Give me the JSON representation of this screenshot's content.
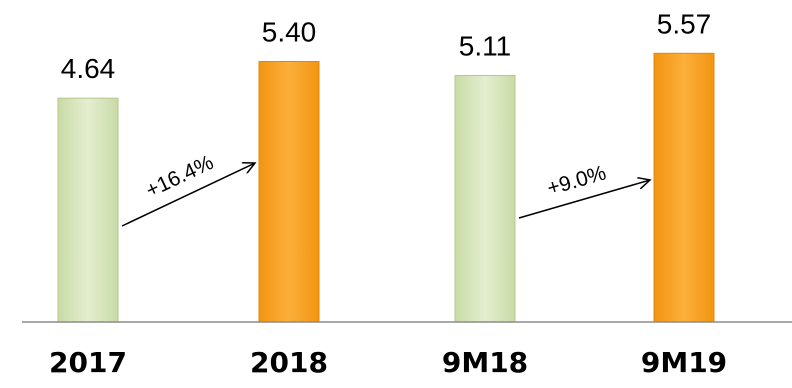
{
  "chart_data": {
    "type": "bar",
    "categories": [
      "2017",
      "2018",
      "9M18",
      "9M19"
    ],
    "values": [
      4.64,
      5.4,
      5.11,
      5.57
    ],
    "value_labels": [
      "4.64",
      "5.40",
      "5.11",
      "5.57"
    ],
    "title": "",
    "xlabel": "",
    "ylabel": "",
    "ylim": [
      0,
      5.6
    ],
    "grid": false,
    "legend": "none",
    "bar_colors": [
      "#d7e4bd",
      "#f9a11b",
      "#d7e4bd",
      "#f9a11b"
    ],
    "annotations": [
      {
        "text": "+16.4%",
        "from_category": "2017",
        "to_category": "2018"
      },
      {
        "text": "+9.0%",
        "from_category": "9M18",
        "to_category": "9M19"
      }
    ]
  },
  "colors": {
    "light_bar": "#d7e4bd",
    "light_bar_edge": "#b6c88e",
    "orange_bar": "#f9a11b",
    "orange_bar_edge": "#e08a0a",
    "axis": "#8c8c8c"
  }
}
